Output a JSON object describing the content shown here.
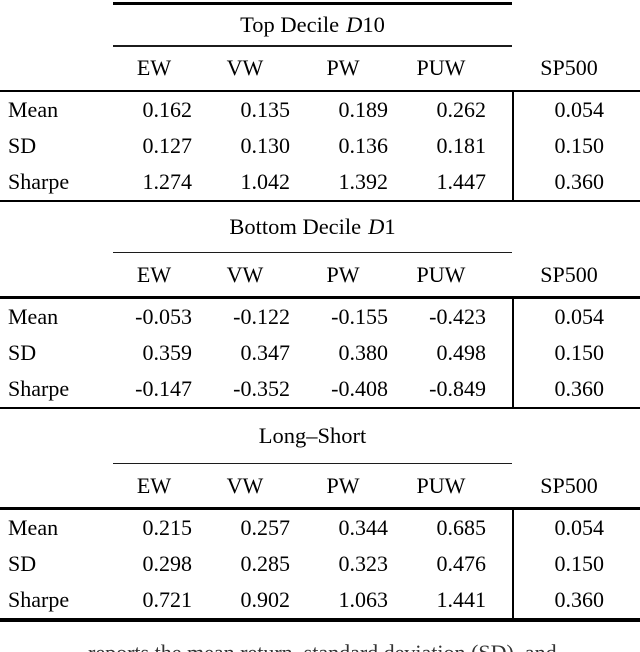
{
  "columns": [
    "EW",
    "VW",
    "PW",
    "PUW",
    "SP500"
  ],
  "panels": [
    {
      "caption": {
        "text": "Top Decile",
        "var": "D",
        "num": "10"
      },
      "rows": [
        {
          "label": "Mean",
          "values": [
            "0.162",
            "0.135",
            "0.189",
            "0.262",
            "0.054"
          ]
        },
        {
          "label": "SD",
          "values": [
            "0.127",
            "0.130",
            "0.136",
            "0.181",
            "0.150"
          ]
        },
        {
          "label": "Sharpe",
          "values": [
            "1.274",
            "1.042",
            "1.392",
            "1.447",
            "0.360"
          ]
        }
      ]
    },
    {
      "caption": {
        "text": "Bottom Decile",
        "var": "D",
        "num": "1"
      },
      "rows": [
        {
          "label": "Mean",
          "values": [
            "-0.053",
            "-0.122",
            "-0.155",
            "-0.423",
            "0.054"
          ]
        },
        {
          "label": "SD",
          "values": [
            "0.359",
            "0.347",
            "0.380",
            "0.498",
            "0.150"
          ]
        },
        {
          "label": "Sharpe",
          "values": [
            "-0.147",
            "-0.352",
            "-0.408",
            "-0.849",
            "0.360"
          ]
        }
      ]
    },
    {
      "caption": {
        "text": "Long–Short",
        "var": "",
        "num": ""
      },
      "rows": [
        {
          "label": "Mean",
          "values": [
            "0.215",
            "0.257",
            "0.344",
            "0.685",
            "0.054"
          ]
        },
        {
          "label": "SD",
          "values": [
            "0.298",
            "0.285",
            "0.323",
            "0.476",
            "0.150"
          ]
        },
        {
          "label": "Sharpe",
          "values": [
            "0.721",
            "0.902",
            "1.063",
            "1.441",
            "0.360"
          ]
        }
      ]
    }
  ],
  "bottom_caption_fragment": "reports the mean return, standard deviation (SD), and"
}
